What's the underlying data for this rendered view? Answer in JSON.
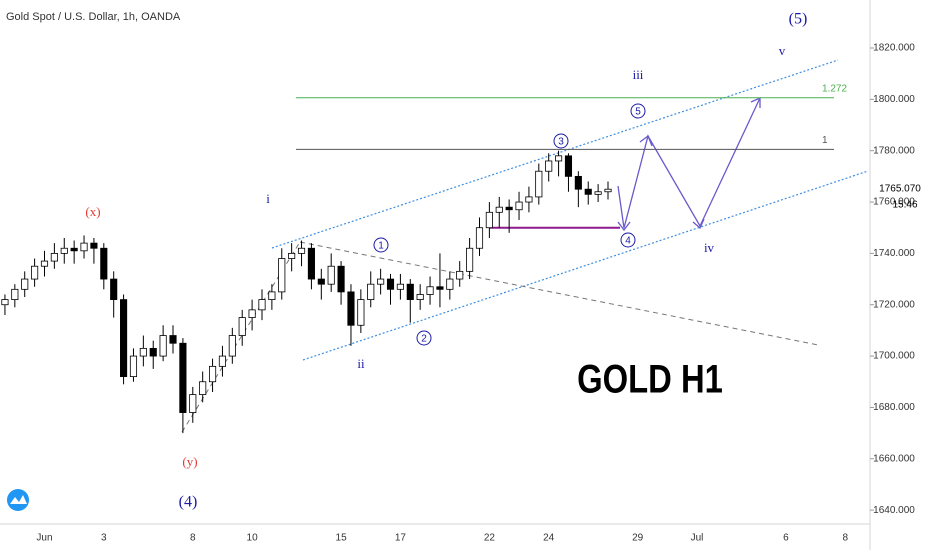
{
  "chart_data": {
    "type": "candlestick",
    "title": "Gold Spot / U.S. Dollar, 1h, OANDA",
    "watermark": "GOLD H1",
    "categories": [
      null,
      null,
      null,
      null,
      "Jun",
      null,
      null,
      null,
      null,
      null,
      "3",
      null,
      null,
      null,
      null,
      null,
      null,
      null,
      null,
      "8",
      null,
      null,
      null,
      null,
      null,
      "10",
      null,
      null,
      null,
      null,
      null,
      null,
      null,
      null,
      "15",
      null,
      null,
      null,
      null,
      null,
      "17",
      null,
      null,
      null,
      null,
      null,
      null,
      null,
      null,
      "22",
      null,
      null,
      null,
      null,
      null,
      "24",
      null,
      null,
      null,
      null,
      null,
      null,
      null,
      null,
      "29",
      null,
      null,
      null,
      null,
      null,
      "Jul",
      null,
      null,
      null,
      null,
      null,
      null,
      null,
      null,
      "6",
      null,
      null,
      null,
      null,
      null,
      "8",
      null,
      null
    ],
    "ohlc": [
      [
        1720,
        1724,
        1716,
        1722
      ],
      [
        1722,
        1728,
        1719,
        1726
      ],
      [
        1726,
        1733,
        1723,
        1730
      ],
      [
        1730,
        1738,
        1727,
        1735
      ],
      [
        1735,
        1741,
        1731,
        1737
      ],
      [
        1737,
        1744,
        1734,
        1740
      ],
      [
        1740,
        1746,
        1736,
        1742
      ],
      [
        1742,
        1745,
        1736,
        1741
      ],
      [
        1741,
        1747,
        1738,
        1744
      ],
      [
        1744,
        1746,
        1736,
        1742
      ],
      [
        1742,
        1744,
        1726,
        1730
      ],
      [
        1730,
        1733,
        1715,
        1722
      ],
      [
        1722,
        1724,
        1689,
        1692
      ],
      [
        1692,
        1703,
        1690,
        1700
      ],
      [
        1700,
        1708,
        1696,
        1703
      ],
      [
        1703,
        1706,
        1695,
        1700
      ],
      [
        1700,
        1712,
        1698,
        1708
      ],
      [
        1708,
        1712,
        1701,
        1705
      ],
      [
        1705,
        1707,
        1670,
        1678
      ],
      [
        1678,
        1688,
        1674,
        1685
      ],
      [
        1685,
        1694,
        1682,
        1690
      ],
      [
        1690,
        1699,
        1686,
        1696
      ],
      [
        1696,
        1704,
        1692,
        1700
      ],
      [
        1700,
        1711,
        1697,
        1708
      ],
      [
        1708,
        1718,
        1704,
        1715
      ],
      [
        1715,
        1722,
        1710,
        1718
      ],
      [
        1718,
        1726,
        1714,
        1722
      ],
      [
        1722,
        1728,
        1718,
        1725
      ],
      [
        1725,
        1742,
        1722,
        1738
      ],
      [
        1738,
        1744,
        1733,
        1740
      ],
      [
        1740,
        1745,
        1735,
        1742
      ],
      [
        1742,
        1744,
        1726,
        1730
      ],
      [
        1730,
        1734,
        1722,
        1728
      ],
      [
        1728,
        1740,
        1725,
        1735
      ],
      [
        1735,
        1737,
        1720,
        1725
      ],
      [
        1725,
        1728,
        1704,
        1712
      ],
      [
        1712,
        1726,
        1709,
        1722
      ],
      [
        1722,
        1733,
        1719,
        1728
      ],
      [
        1728,
        1734,
        1724,
        1730
      ],
      [
        1730,
        1732,
        1720,
        1726
      ],
      [
        1726,
        1732,
        1722,
        1728
      ],
      [
        1728,
        1730,
        1713,
        1722
      ],
      [
        1722,
        1728,
        1718,
        1724
      ],
      [
        1724,
        1731,
        1720,
        1727
      ],
      [
        1727,
        1740,
        1719,
        1726
      ],
      [
        1726,
        1733,
        1722,
        1730
      ],
      [
        1730,
        1737,
        1727,
        1733
      ],
      [
        1733,
        1746,
        1730,
        1742
      ],
      [
        1742,
        1754,
        1739,
        1750
      ],
      [
        1750,
        1760,
        1746,
        1756
      ],
      [
        1756,
        1762,
        1750,
        1758
      ],
      [
        1758,
        1761,
        1748,
        1757
      ],
      [
        1757,
        1764,
        1753,
        1760
      ],
      [
        1760,
        1766,
        1756,
        1762
      ],
      [
        1762,
        1775,
        1759,
        1772
      ],
      [
        1772,
        1779,
        1768,
        1776
      ],
      [
        1776,
        1780,
        1770,
        1778
      ],
      [
        1778,
        1779,
        1764,
        1770
      ],
      [
        1770,
        1772,
        1758,
        1765
      ],
      [
        1765,
        1768,
        1759,
        1763
      ],
      [
        1763,
        1767,
        1760,
        1764
      ],
      [
        1764,
        1768,
        1761,
        1765
      ]
    ],
    "ylim": [
      1634.2,
      1838.7
    ],
    "yticks": [
      {
        "value": 1640,
        "label": "1640.000"
      },
      {
        "value": 1660,
        "label": "1660.000"
      },
      {
        "value": 1680,
        "label": "1680.000"
      },
      {
        "value": 1700,
        "label": "1700.000"
      },
      {
        "value": 1720,
        "label": "1720.000"
      },
      {
        "value": 1740,
        "label": "1740.000"
      },
      {
        "value": 1760,
        "label": "1760.000"
      },
      {
        "value": 1780,
        "label": "1780.000"
      },
      {
        "value": 1800,
        "label": "1800.000"
      },
      {
        "value": 1820,
        "label": "1820.000"
      }
    ],
    "last_price": {
      "value": 1765.07,
      "label": "1765.070"
    },
    "last_time": "15:46",
    "levels": [
      {
        "value": 1800.6,
        "label": "1.272",
        "color": "#4caf50"
      },
      {
        "value": 1780.5,
        "label": "1",
        "color": "#555555"
      }
    ],
    "support": 1750,
    "annotations": [
      {
        "text": "(x)",
        "color": "#e53935"
      },
      {
        "text": "(y)",
        "color": "#e53935"
      },
      {
        "text": "(4)",
        "color": "#1a1aa6"
      },
      {
        "text": "i",
        "color": "#1a1aa6"
      },
      {
        "text": "ii",
        "color": "#1a1aa6"
      },
      {
        "text": "iii",
        "color": "#1a1aa6"
      },
      {
        "text": "iv",
        "color": "#1a1aa6"
      },
      {
        "text": "v",
        "color": "#1a1aa6"
      },
      {
        "text": "(5)",
        "color": "#1a1aa6"
      },
      {
        "text": "1",
        "color": "#1a1aa6"
      },
      {
        "text": "2",
        "color": "#1a1aa6"
      },
      {
        "text": "3",
        "color": "#1a1aa6"
      },
      {
        "text": "4",
        "color": "#1a1aa6"
      },
      {
        "text": "5",
        "color": "#1a1aa6"
      }
    ]
  }
}
